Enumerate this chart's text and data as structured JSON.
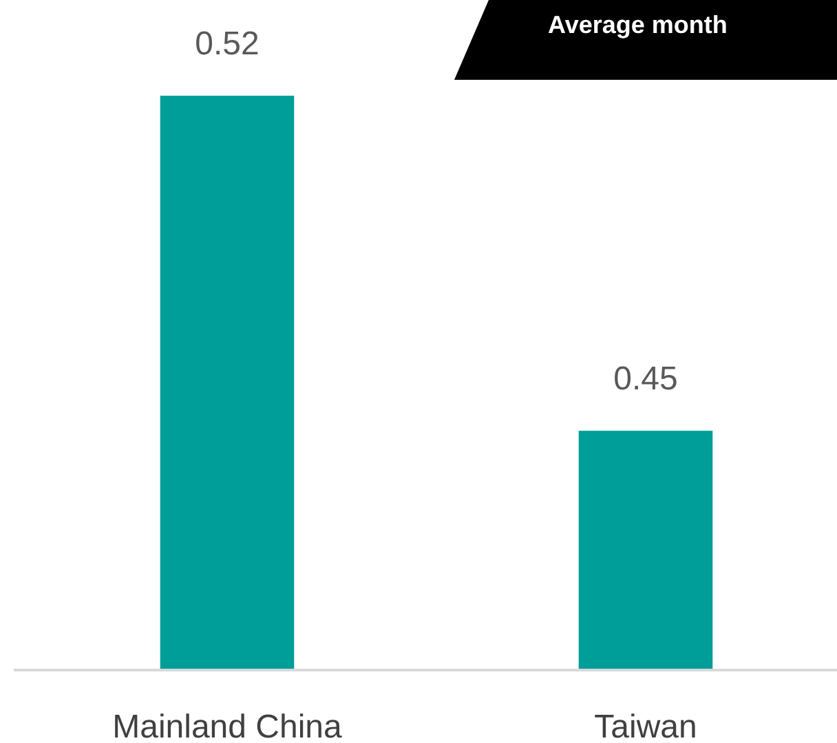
{
  "chart_data": {
    "type": "bar",
    "title": "Average month",
    "categories": [
      "Mainland China",
      "Taiwan"
    ],
    "values": [
      0.52,
      0.45
    ],
    "color": "#009e98",
    "ylim": [
      0.4,
      0.54
    ],
    "data_labels": true,
    "tick_labels": "x"
  }
}
